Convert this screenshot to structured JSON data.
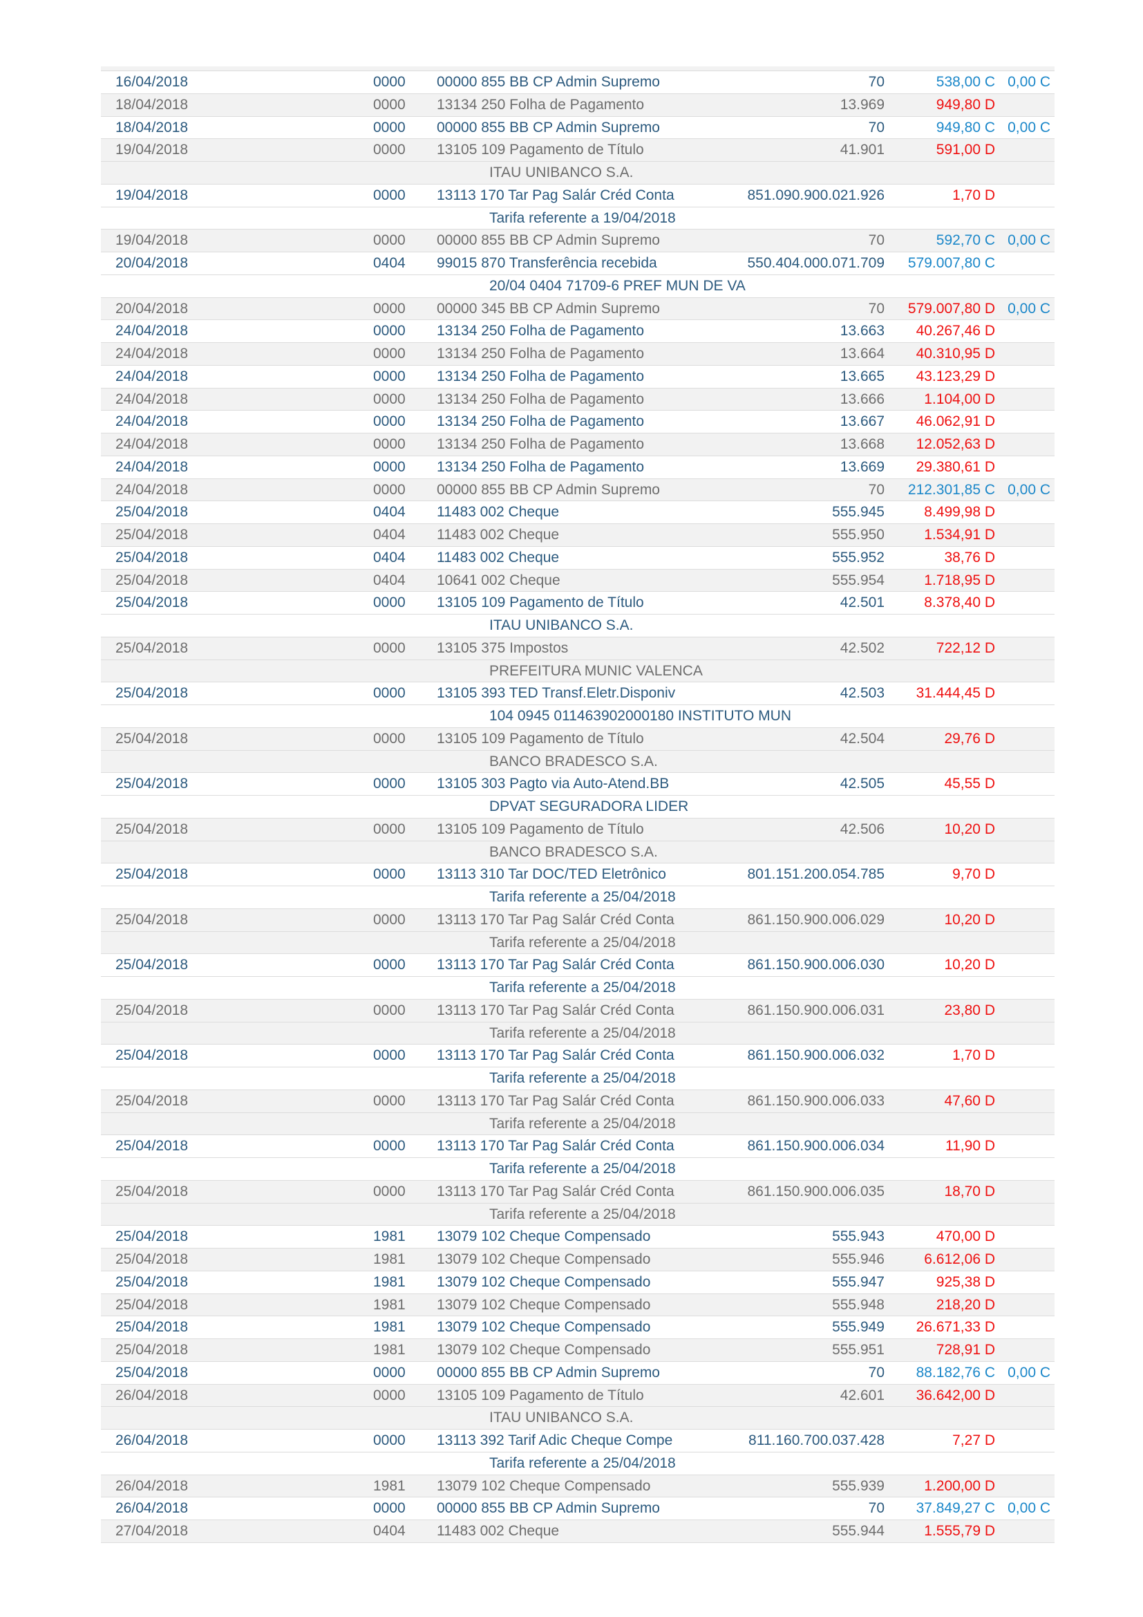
{
  "colors": {
    "text_scheme_light_rows": "#2c5a7e",
    "text_scheme_striped_rows": "#6d6d6d",
    "debit_value": "#ee1010",
    "credit_value": "#1b87c9",
    "stripe_background": "#f2f2f2",
    "row_separator": "#dcdcdc",
    "page_background": "#ffffff"
  },
  "table": {
    "debit_suffix": "D",
    "credit_suffix": "C",
    "transactions": [
      {
        "date": "16/04/2018",
        "agency": "0000",
        "description": "00000 855 BB CP Admin Supremo",
        "document": "70",
        "amount": "538,00",
        "dc": "C",
        "balance": "0,00 C",
        "detail": null
      },
      {
        "date": "18/04/2018",
        "agency": "0000",
        "description": "13134 250 Folha de Pagamento",
        "document": "13.969",
        "amount": "949,80",
        "dc": "D",
        "balance": null,
        "detail": null
      },
      {
        "date": "18/04/2018",
        "agency": "0000",
        "description": "00000 855 BB CP Admin Supremo",
        "document": "70",
        "amount": "949,80",
        "dc": "C",
        "balance": "0,00 C",
        "detail": null
      },
      {
        "date": "19/04/2018",
        "agency": "0000",
        "description": "13105 109 Pagamento de Título",
        "document": "41.901",
        "amount": "591,00",
        "dc": "D",
        "balance": null,
        "detail": "ITAU UNIBANCO S.A."
      },
      {
        "date": "19/04/2018",
        "agency": "0000",
        "description": "13113 170 Tar Pag Salár Créd Conta",
        "document": "851.090.900.021.926",
        "amount": "1,70",
        "dc": "D",
        "balance": null,
        "detail": "Tarifa referente a 19/04/2018"
      },
      {
        "date": "19/04/2018",
        "agency": "0000",
        "description": "00000 855 BB CP Admin Supremo",
        "document": "70",
        "amount": "592,70",
        "dc": "C",
        "balance": "0,00 C",
        "detail": null
      },
      {
        "date": "20/04/2018",
        "agency": "0404",
        "description": "99015 870 Transferência recebida",
        "document": "550.404.000.071.709",
        "amount": "579.007,80",
        "dc": "C",
        "balance": null,
        "detail": "20/04 0404 71709-6 PREF MUN DE VA"
      },
      {
        "date": "20/04/2018",
        "agency": "0000",
        "description": "00000 345 BB CP Admin Supremo",
        "document": "70",
        "amount": "579.007,80",
        "dc": "D",
        "balance": "0,00 C",
        "detail": null
      },
      {
        "date": "24/04/2018",
        "agency": "0000",
        "description": "13134 250 Folha de Pagamento",
        "document": "13.663",
        "amount": "40.267,46",
        "dc": "D",
        "balance": null,
        "detail": null
      },
      {
        "date": "24/04/2018",
        "agency": "0000",
        "description": "13134 250 Folha de Pagamento",
        "document": "13.664",
        "amount": "40.310,95",
        "dc": "D",
        "balance": null,
        "detail": null
      },
      {
        "date": "24/04/2018",
        "agency": "0000",
        "description": "13134 250 Folha de Pagamento",
        "document": "13.665",
        "amount": "43.123,29",
        "dc": "D",
        "balance": null,
        "detail": null
      },
      {
        "date": "24/04/2018",
        "agency": "0000",
        "description": "13134 250 Folha de Pagamento",
        "document": "13.666",
        "amount": "1.104,00",
        "dc": "D",
        "balance": null,
        "detail": null
      },
      {
        "date": "24/04/2018",
        "agency": "0000",
        "description": "13134 250 Folha de Pagamento",
        "document": "13.667",
        "amount": "46.062,91",
        "dc": "D",
        "balance": null,
        "detail": null
      },
      {
        "date": "24/04/2018",
        "agency": "0000",
        "description": "13134 250 Folha de Pagamento",
        "document": "13.668",
        "amount": "12.052,63",
        "dc": "D",
        "balance": null,
        "detail": null
      },
      {
        "date": "24/04/2018",
        "agency": "0000",
        "description": "13134 250 Folha de Pagamento",
        "document": "13.669",
        "amount": "29.380,61",
        "dc": "D",
        "balance": null,
        "detail": null
      },
      {
        "date": "24/04/2018",
        "agency": "0000",
        "description": "00000 855 BB CP Admin Supremo",
        "document": "70",
        "amount": "212.301,85",
        "dc": "C",
        "balance": "0,00 C",
        "detail": null
      },
      {
        "date": "25/04/2018",
        "agency": "0404",
        "description": "11483 002 Cheque",
        "document": "555.945",
        "amount": "8.499,98",
        "dc": "D",
        "balance": null,
        "detail": null
      },
      {
        "date": "25/04/2018",
        "agency": "0404",
        "description": "11483 002 Cheque",
        "document": "555.950",
        "amount": "1.534,91",
        "dc": "D",
        "balance": null,
        "detail": null
      },
      {
        "date": "25/04/2018",
        "agency": "0404",
        "description": "11483 002 Cheque",
        "document": "555.952",
        "amount": "38,76",
        "dc": "D",
        "balance": null,
        "detail": null
      },
      {
        "date": "25/04/2018",
        "agency": "0404",
        "description": "10641 002 Cheque",
        "document": "555.954",
        "amount": "1.718,95",
        "dc": "D",
        "balance": null,
        "detail": null
      },
      {
        "date": "25/04/2018",
        "agency": "0000",
        "description": "13105 109 Pagamento de Título",
        "document": "42.501",
        "amount": "8.378,40",
        "dc": "D",
        "balance": null,
        "detail": "ITAU UNIBANCO S.A."
      },
      {
        "date": "25/04/2018",
        "agency": "0000",
        "description": "13105 375 Impostos",
        "document": "42.502",
        "amount": "722,12",
        "dc": "D",
        "balance": null,
        "detail": "PREFEITURA MUNIC VALENCA"
      },
      {
        "date": "25/04/2018",
        "agency": "0000",
        "description": "13105 393 TED Transf.Eletr.Disponiv",
        "document": "42.503",
        "amount": "31.444,45",
        "dc": "D",
        "balance": null,
        "detail": "104 0945 011463902000180 INSTITUTO MUN"
      },
      {
        "date": "25/04/2018",
        "agency": "0000",
        "description": "13105 109 Pagamento de Título",
        "document": "42.504",
        "amount": "29,76",
        "dc": "D",
        "balance": null,
        "detail": "BANCO BRADESCO S.A."
      },
      {
        "date": "25/04/2018",
        "agency": "0000",
        "description": "13105 303 Pagto via Auto-Atend.BB",
        "document": "42.505",
        "amount": "45,55",
        "dc": "D",
        "balance": null,
        "detail": "DPVAT SEGURADORA LIDER"
      },
      {
        "date": "25/04/2018",
        "agency": "0000",
        "description": "13105 109 Pagamento de Título",
        "document": "42.506",
        "amount": "10,20",
        "dc": "D",
        "balance": null,
        "detail": "BANCO BRADESCO S.A."
      },
      {
        "date": "25/04/2018",
        "agency": "0000",
        "description": "13113 310 Tar DOC/TED Eletrônico",
        "document": "801.151.200.054.785",
        "amount": "9,70",
        "dc": "D",
        "balance": null,
        "detail": "Tarifa referente a 25/04/2018"
      },
      {
        "date": "25/04/2018",
        "agency": "0000",
        "description": "13113 170 Tar Pag Salár Créd Conta",
        "document": "861.150.900.006.029",
        "amount": "10,20",
        "dc": "D",
        "balance": null,
        "detail": "Tarifa referente a 25/04/2018"
      },
      {
        "date": "25/04/2018",
        "agency": "0000",
        "description": "13113 170 Tar Pag Salár Créd Conta",
        "document": "861.150.900.006.030",
        "amount": "10,20",
        "dc": "D",
        "balance": null,
        "detail": "Tarifa referente a 25/04/2018"
      },
      {
        "date": "25/04/2018",
        "agency": "0000",
        "description": "13113 170 Tar Pag Salár Créd Conta",
        "document": "861.150.900.006.031",
        "amount": "23,80",
        "dc": "D",
        "balance": null,
        "detail": "Tarifa referente a 25/04/2018"
      },
      {
        "date": "25/04/2018",
        "agency": "0000",
        "description": "13113 170 Tar Pag Salár Créd Conta",
        "document": "861.150.900.006.032",
        "amount": "1,70",
        "dc": "D",
        "balance": null,
        "detail": "Tarifa referente a 25/04/2018"
      },
      {
        "date": "25/04/2018",
        "agency": "0000",
        "description": "13113 170 Tar Pag Salár Créd Conta",
        "document": "861.150.900.006.033",
        "amount": "47,60",
        "dc": "D",
        "balance": null,
        "detail": "Tarifa referente a 25/04/2018"
      },
      {
        "date": "25/04/2018",
        "agency": "0000",
        "description": "13113 170 Tar Pag Salár Créd Conta",
        "document": "861.150.900.006.034",
        "amount": "11,90",
        "dc": "D",
        "balance": null,
        "detail": "Tarifa referente a 25/04/2018"
      },
      {
        "date": "25/04/2018",
        "agency": "0000",
        "description": "13113 170 Tar Pag Salár Créd Conta",
        "document": "861.150.900.006.035",
        "amount": "18,70",
        "dc": "D",
        "balance": null,
        "detail": "Tarifa referente a 25/04/2018"
      },
      {
        "date": "25/04/2018",
        "agency": "1981",
        "description": "13079 102 Cheque Compensado",
        "document": "555.943",
        "amount": "470,00",
        "dc": "D",
        "balance": null,
        "detail": null
      },
      {
        "date": "25/04/2018",
        "agency": "1981",
        "description": "13079 102 Cheque Compensado",
        "document": "555.946",
        "amount": "6.612,06",
        "dc": "D",
        "balance": null,
        "detail": null
      },
      {
        "date": "25/04/2018",
        "agency": "1981",
        "description": "13079 102 Cheque Compensado",
        "document": "555.947",
        "amount": "925,38",
        "dc": "D",
        "balance": null,
        "detail": null
      },
      {
        "date": "25/04/2018",
        "agency": "1981",
        "description": "13079 102 Cheque Compensado",
        "document": "555.948",
        "amount": "218,20",
        "dc": "D",
        "balance": null,
        "detail": null
      },
      {
        "date": "25/04/2018",
        "agency": "1981",
        "description": "13079 102 Cheque Compensado",
        "document": "555.949",
        "amount": "26.671,33",
        "dc": "D",
        "balance": null,
        "detail": null
      },
      {
        "date": "25/04/2018",
        "agency": "1981",
        "description": "13079 102 Cheque Compensado",
        "document": "555.951",
        "amount": "728,91",
        "dc": "D",
        "balance": null,
        "detail": null
      },
      {
        "date": "25/04/2018",
        "agency": "0000",
        "description": "00000 855 BB CP Admin Supremo",
        "document": "70",
        "amount": "88.182,76",
        "dc": "C",
        "balance": "0,00 C",
        "detail": null
      },
      {
        "date": "26/04/2018",
        "agency": "0000",
        "description": "13105 109 Pagamento de Título",
        "document": "42.601",
        "amount": "36.642,00",
        "dc": "D",
        "balance": null,
        "detail": "ITAU UNIBANCO S.A."
      },
      {
        "date": "26/04/2018",
        "agency": "0000",
        "description": "13113 392 Tarif Adic Cheque Compe",
        "document": "811.160.700.037.428",
        "amount": "7,27",
        "dc": "D",
        "balance": null,
        "detail": "Tarifa referente a 25/04/2018"
      },
      {
        "date": "26/04/2018",
        "agency": "1981",
        "description": "13079 102 Cheque Compensado",
        "document": "555.939",
        "amount": "1.200,00",
        "dc": "D",
        "balance": null,
        "detail": null
      },
      {
        "date": "26/04/2018",
        "agency": "0000",
        "description": "00000 855 BB CP Admin Supremo",
        "document": "70",
        "amount": "37.849,27",
        "dc": "C",
        "balance": "0,00 C",
        "detail": null
      },
      {
        "date": "27/04/2018",
        "agency": "0404",
        "description": "11483 002 Cheque",
        "document": "555.944",
        "amount": "1.555,79",
        "dc": "D",
        "balance": null,
        "detail": null
      }
    ]
  }
}
